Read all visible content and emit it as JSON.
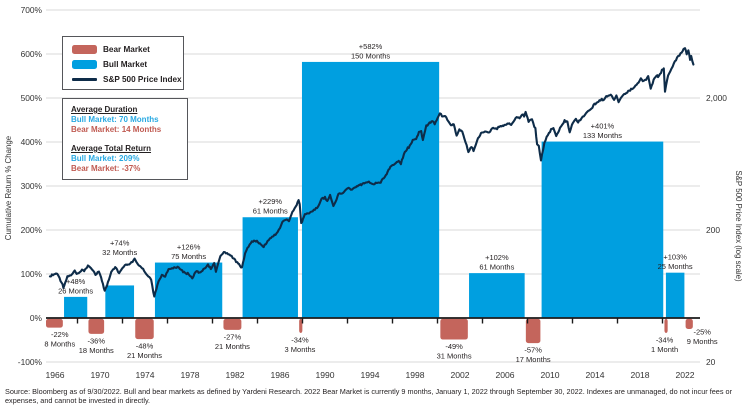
{
  "legend": {
    "items": [
      {
        "key": "bear",
        "label": "Bear Market"
      },
      {
        "key": "bull",
        "label": "Bull Market"
      },
      {
        "key": "line",
        "label": "S&P 500 Price Index"
      }
    ]
  },
  "info_box": {
    "duration_title": "Average Duration",
    "duration_bull": "Bull Market: 70 Months",
    "duration_bear": "Bear Market: 14 Months",
    "return_title": "Average Total Return",
    "return_bull": "Bull Market:  209%",
    "return_bear": "Bear Market: -37%"
  },
  "source": {
    "text": "Source: Bloomberg as of 9/30/2022. Bull and bear markets as defined by Yardeni Research. 2022 Bear Market is currently 9 months, January 1, 2022 through September 30, 2022. Indexes are unmanaged, do not incur fees or expenses, and cannot be invested in directly."
  },
  "colors": {
    "bull_blue": "#009FE0",
    "bear_red": "#C4655C",
    "line_navy": "#0E2C49",
    "grid_gray": "#D9D9D9",
    "axis_black": "#1A1A1A",
    "text_dark": "#231F20",
    "axis_text": "#333333"
  },
  "chart_data": {
    "type": "composite-bar-line",
    "title": "",
    "x_axis": {
      "tick_years": [
        1966,
        1970,
        1974,
        1978,
        1982,
        1986,
        1990,
        1994,
        1998,
        2002,
        2006,
        2010,
        2014,
        2018,
        2022
      ],
      "minor_tick_years": [
        1968,
        1972,
        1976,
        1980,
        1984,
        1988,
        1992,
        1996,
        2000,
        2004,
        2008,
        2012,
        2016,
        2020
      ],
      "range": [
        1965.2,
        2023.1
      ]
    },
    "y_left": {
      "label": "Cumulative Return % Change",
      "tick_values": [
        700,
        600,
        500,
        400,
        300,
        200,
        100,
        0,
        -100
      ],
      "tick_labels": [
        "700%",
        "600%",
        "500%",
        "400%",
        "300%",
        "200%",
        "100%",
        "0%",
        "-100%"
      ],
      "range": [
        -100,
        700
      ],
      "grid": true
    },
    "y_right": {
      "label": "S&P 500 Price Index (log scale)",
      "tick_values": [
        2000,
        200,
        20
      ],
      "tick_labels": [
        "2,000",
        "200",
        "20"
      ],
      "scale": "log"
    },
    "market_segments": [
      {
        "kind": "bear",
        "start": 1966.1,
        "end": 1966.75,
        "return_pct": -22,
        "months": 8,
        "pct_label": "-22%",
        "months_label": "8 Months",
        "extend_left": true
      },
      {
        "kind": "bull",
        "start": 1966.75,
        "end": 1968.92,
        "return_pct": 48,
        "months": 26,
        "pct_label": "+48%",
        "months_label": "26 Months"
      },
      {
        "kind": "bear",
        "start": 1968.92,
        "end": 1970.42,
        "return_pct": -36,
        "months": 18,
        "pct_label": "-36%",
        "months_label": "18 Months"
      },
      {
        "kind": "bull",
        "start": 1970.42,
        "end": 1973.08,
        "return_pct": 74,
        "months": 32,
        "pct_label": "+74%",
        "months_label": "32 Months",
        "label_dy": -27
      },
      {
        "kind": "bear",
        "start": 1973.08,
        "end": 1974.83,
        "return_pct": -48,
        "months": 21,
        "pct_label": "-48%",
        "months_label": "21 Months"
      },
      {
        "kind": "bull",
        "start": 1974.83,
        "end": 1980.92,
        "return_pct": 126,
        "months": 75,
        "pct_label": "+126%",
        "months_label": "75 Months"
      },
      {
        "kind": "bear",
        "start": 1980.92,
        "end": 1982.62,
        "return_pct": -27,
        "months": 21,
        "pct_label": "-27%",
        "months_label": "21 Months"
      },
      {
        "kind": "bull",
        "start": 1982.62,
        "end": 1987.65,
        "return_pct": 229,
        "months": 61,
        "pct_label": "+229%",
        "months_label": "61 Months"
      },
      {
        "kind": "bear",
        "start": 1987.65,
        "end": 1987.9,
        "return_pct": -34,
        "months": 3,
        "pct_label": "-34%",
        "months_label": "3 Months"
      },
      {
        "kind": "bull",
        "start": 1987.9,
        "end": 2000.2,
        "return_pct": 582,
        "months": 150,
        "pct_label": "+582%",
        "months_label": "150 Months"
      },
      {
        "kind": "bear",
        "start": 2000.2,
        "end": 2002.75,
        "return_pct": -49,
        "months": 31,
        "pct_label": "-49%",
        "months_label": "31 Months"
      },
      {
        "kind": "bull",
        "start": 2002.75,
        "end": 2007.8,
        "return_pct": 102,
        "months": 61,
        "pct_label": "+102%",
        "months_label": "61 Months"
      },
      {
        "kind": "bear",
        "start": 2007.8,
        "end": 2009.2,
        "return_pct": -57,
        "months": 17,
        "pct_label": "-57%",
        "months_label": "17 Months"
      },
      {
        "kind": "bull",
        "start": 2009.2,
        "end": 2020.12,
        "return_pct": 401,
        "months": 133,
        "pct_label": "+401%",
        "months_label": "133 Months"
      },
      {
        "kind": "bear",
        "start": 2020.12,
        "end": 2020.25,
        "return_pct": -34,
        "months": 1,
        "pct_label": "-34%",
        "months_label": "1 Month"
      },
      {
        "kind": "bull",
        "start": 2020.25,
        "end": 2022.0,
        "return_pct": 103,
        "months": 25,
        "pct_label": "+103%",
        "months_label": "25 Months"
      },
      {
        "kind": "bear",
        "start": 2022.0,
        "end": 2022.75,
        "return_pct": -25,
        "months": 9,
        "pct_label": "-25%",
        "months_label": "9 Months",
        "label_dx": 13,
        "label_dy": -4
      }
    ],
    "sp500_line": {
      "name": "S&P 500 Price Index",
      "points": [
        [
          1965.55,
          89
        ],
        [
          1966.1,
          94
        ],
        [
          1966.4,
          87
        ],
        [
          1966.75,
          73.5
        ],
        [
          1967.1,
          89
        ],
        [
          1967.4,
          91
        ],
        [
          1967.75,
          97
        ],
        [
          1968.0,
          92
        ],
        [
          1968.4,
          100
        ],
        [
          1968.6,
          98
        ],
        [
          1968.92,
          108
        ],
        [
          1969.3,
          101
        ],
        [
          1969.6,
          92
        ],
        [
          1969.9,
          97
        ],
        [
          1970.1,
          86
        ],
        [
          1970.42,
          69.5
        ],
        [
          1970.8,
          84
        ],
        [
          1971.0,
          95
        ],
        [
          1971.35,
          104
        ],
        [
          1971.7,
          94
        ],
        [
          1971.95,
          102
        ],
        [
          1972.3,
          108
        ],
        [
          1972.7,
          111
        ],
        [
          1973.08,
          120
        ],
        [
          1973.4,
          108
        ],
        [
          1973.75,
          104
        ],
        [
          1974.0,
          96
        ],
        [
          1974.3,
          90
        ],
        [
          1974.55,
          84
        ],
        [
          1974.83,
          62.3
        ],
        [
          1975.1,
          77
        ],
        [
          1975.5,
          92
        ],
        [
          1975.8,
          88
        ],
        [
          1976.1,
          101
        ],
        [
          1976.5,
          104
        ],
        [
          1976.9,
          105
        ],
        [
          1977.3,
          98
        ],
        [
          1977.8,
          93
        ],
        [
          1978.2,
          87
        ],
        [
          1978.6,
          99
        ],
        [
          1978.85,
          94
        ],
        [
          1979.2,
          101
        ],
        [
          1979.6,
          108
        ],
        [
          1979.85,
          103
        ],
        [
          1980.15,
          111
        ],
        [
          1980.3,
          98
        ],
        [
          1980.7,
          125
        ],
        [
          1981.0,
          138
        ],
        [
          1981.3,
          132
        ],
        [
          1981.6,
          130
        ],
        [
          1981.9,
          121
        ],
        [
          1982.2,
          114
        ],
        [
          1982.45,
          108
        ],
        [
          1982.62,
          102.4
        ],
        [
          1982.9,
          135
        ],
        [
          1983.2,
          150
        ],
        [
          1983.6,
          166
        ],
        [
          1983.95,
          164
        ],
        [
          1984.3,
          155
        ],
        [
          1984.55,
          150
        ],
        [
          1984.9,
          165
        ],
        [
          1985.3,
          178
        ],
        [
          1985.7,
          188
        ],
        [
          1986.0,
          208
        ],
        [
          1986.3,
          236
        ],
        [
          1986.6,
          240
        ],
        [
          1986.8,
          235
        ],
        [
          1987.1,
          275
        ],
        [
          1987.4,
          300
        ],
        [
          1987.65,
          336
        ],
        [
          1987.75,
          315
        ],
        [
          1987.88,
          224
        ],
        [
          1988.2,
          260
        ],
        [
          1988.6,
          270
        ],
        [
          1988.9,
          278
        ],
        [
          1989.3,
          295
        ],
        [
          1989.7,
          345
        ],
        [
          1990.0,
          350
        ],
        [
          1990.2,
          335
        ],
        [
          1990.45,
          365
        ],
        [
          1990.75,
          305
        ],
        [
          1990.95,
          325
        ],
        [
          1991.2,
          375
        ],
        [
          1991.6,
          380
        ],
        [
          1992.0,
          415
        ],
        [
          1992.4,
          405
        ],
        [
          1992.9,
          435
        ],
        [
          1993.4,
          448
        ],
        [
          1993.9,
          465
        ],
        [
          1994.2,
          445
        ],
        [
          1994.6,
          455
        ],
        [
          1994.95,
          460
        ],
        [
          1995.4,
          525
        ],
        [
          1995.9,
          615
        ],
        [
          1996.3,
          645
        ],
        [
          1996.55,
          670
        ],
        [
          1996.75,
          640
        ],
        [
          1997.1,
          790
        ],
        [
          1997.45,
          850
        ],
        [
          1997.8,
          950
        ],
        [
          1998.1,
          985
        ],
        [
          1998.35,
          1100
        ],
        [
          1998.55,
          1120
        ],
        [
          1998.7,
          960
        ],
        [
          1999.0,
          1230
        ],
        [
          1999.3,
          1300
        ],
        [
          1999.55,
          1330
        ],
        [
          1999.75,
          1280
        ],
        [
          2000.2,
          1527
        ],
        [
          2000.5,
          1450
        ],
        [
          2000.7,
          1480
        ],
        [
          2000.95,
          1320
        ],
        [
          2001.2,
          1240
        ],
        [
          2001.45,
          1270
        ],
        [
          2001.7,
          1040
        ],
        [
          2001.95,
          1140
        ],
        [
          2002.2,
          1110
        ],
        [
          2002.5,
          920
        ],
        [
          2002.75,
          776
        ],
        [
          2003.0,
          855
        ],
        [
          2003.2,
          800
        ],
        [
          2003.6,
          990
        ],
        [
          2003.95,
          1100
        ],
        [
          2004.3,
          1110
        ],
        [
          2004.6,
          1100
        ],
        [
          2004.95,
          1200
        ],
        [
          2005.3,
          1180
        ],
        [
          2005.7,
          1220
        ],
        [
          2005.95,
          1250
        ],
        [
          2006.3,
          1280
        ],
        [
          2006.55,
          1260
        ],
        [
          2006.95,
          1418
        ],
        [
          2007.3,
          1420
        ],
        [
          2007.55,
          1500
        ],
        [
          2007.7,
          1450
        ],
        [
          2007.83,
          1560
        ],
        [
          2008.1,
          1330
        ],
        [
          2008.4,
          1385
        ],
        [
          2008.7,
          1160
        ],
        [
          2008.85,
          900
        ],
        [
          2009.0,
          870
        ],
        [
          2009.2,
          677
        ],
        [
          2009.5,
          920
        ],
        [
          2009.9,
          1090
        ],
        [
          2010.3,
          1200
        ],
        [
          2010.55,
          1030
        ],
        [
          2010.9,
          1180
        ],
        [
          2011.3,
          1360
        ],
        [
          2011.55,
          1320
        ],
        [
          2011.75,
          1100
        ],
        [
          2011.95,
          1250
        ],
        [
          2012.3,
          1400
        ],
        [
          2012.5,
          1310
        ],
        [
          2012.9,
          1440
        ],
        [
          2013.3,
          1570
        ],
        [
          2013.6,
          1630
        ],
        [
          2013.95,
          1800
        ],
        [
          2014.3,
          1870
        ],
        [
          2014.6,
          1960
        ],
        [
          2014.8,
          1910
        ],
        [
          2015.0,
          2060
        ],
        [
          2015.4,
          2110
        ],
        [
          2015.7,
          1920
        ],
        [
          2015.9,
          2080
        ],
        [
          2016.1,
          1860
        ],
        [
          2016.4,
          2070
        ],
        [
          2016.7,
          2170
        ],
        [
          2016.95,
          2240
        ],
        [
          2017.3,
          2360
        ],
        [
          2017.6,
          2470
        ],
        [
          2017.95,
          2670
        ],
        [
          2018.08,
          2870
        ],
        [
          2018.25,
          2640
        ],
        [
          2018.55,
          2780
        ],
        [
          2018.73,
          2930
        ],
        [
          2018.95,
          2350
        ],
        [
          2019.3,
          2850
        ],
        [
          2019.55,
          2950
        ],
        [
          2019.6,
          2840
        ],
        [
          2019.95,
          3230
        ],
        [
          2020.12,
          3386
        ],
        [
          2020.22,
          2237
        ],
        [
          2020.5,
          3000
        ],
        [
          2020.8,
          3360
        ],
        [
          2021.1,
          3760
        ],
        [
          2021.4,
          4180
        ],
        [
          2021.7,
          4400
        ],
        [
          2021.95,
          4766
        ],
        [
          2022.0,
          4797
        ],
        [
          2022.15,
          4350
        ],
        [
          2022.3,
          4580
        ],
        [
          2022.45,
          3900
        ],
        [
          2022.55,
          4130
        ],
        [
          2022.75,
          3586
        ]
      ]
    }
  }
}
